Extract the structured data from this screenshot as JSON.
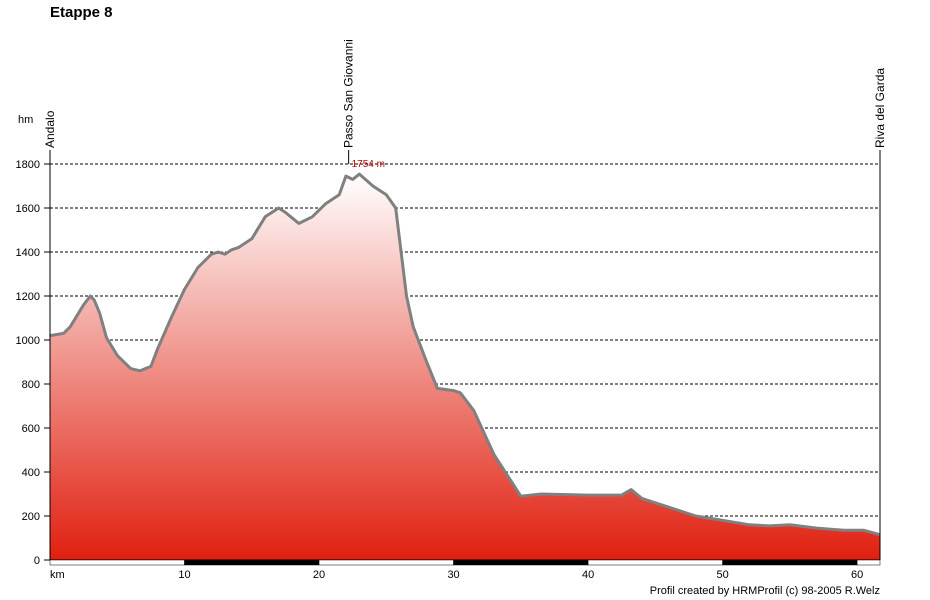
{
  "title": "Etappe 8",
  "footer": "Profil created by HRMProfil (c) 98-2005 R.Welz",
  "colors": {
    "fill_top": "#ffffff",
    "fill_bottom": "#e02010",
    "profile_line": "#808080",
    "peak_label": "#c00000"
  },
  "chart_data": {
    "type": "area",
    "title": "Etappe 8",
    "ylabel": "hm",
    "xlabel": "km",
    "xlim": [
      0,
      61.7
    ],
    "ylim": [
      0,
      1800
    ],
    "yticks": [
      0,
      200,
      400,
      600,
      800,
      1000,
      1200,
      1400,
      1600,
      1800
    ],
    "xticks": [
      10,
      20,
      30,
      40,
      50,
      60
    ],
    "grid": "horizontal dashed",
    "waypoints": [
      {
        "name": "Andalo",
        "km": 0
      },
      {
        "name": "Passo San Giovanni",
        "km": 22.2
      },
      {
        "name": "Riva del Garda",
        "km": 61.7
      }
    ],
    "peak_label": {
      "text": "1754 m",
      "km": 22.2,
      "alt": 1754
    },
    "profile": {
      "km": [
        0,
        1,
        1.5,
        2,
        2.5,
        3,
        3.3,
        3.7,
        4.2,
        5,
        6,
        6.7,
        7.5,
        8,
        9,
        10,
        11,
        12,
        12.5,
        13,
        13.5,
        14,
        15,
        16,
        17,
        17.5,
        18.5,
        19.5,
        20.5,
        21.5,
        22,
        22.5,
        23,
        24,
        25,
        25.7,
        26.5,
        27,
        28,
        28.8,
        30,
        30.5,
        31.5,
        33,
        35,
        36.5,
        40,
        42.5,
        43.2,
        44,
        45,
        48,
        50,
        52,
        53.5,
        55,
        57,
        59,
        60.5,
        61.7
      ],
      "alt": [
        1020,
        1030,
        1060,
        1110,
        1160,
        1200,
        1180,
        1120,
        1010,
        930,
        870,
        860,
        880,
        960,
        1100,
        1230,
        1330,
        1390,
        1400,
        1390,
        1410,
        1420,
        1460,
        1560,
        1600,
        1580,
        1530,
        1560,
        1620,
        1660,
        1745,
        1730,
        1754,
        1700,
        1660,
        1600,
        1200,
        1060,
        900,
        780,
        770,
        760,
        680,
        480,
        290,
        300,
        295,
        295,
        320,
        280,
        260,
        200,
        180,
        160,
        155,
        160,
        145,
        135,
        135,
        115
      ]
    }
  }
}
